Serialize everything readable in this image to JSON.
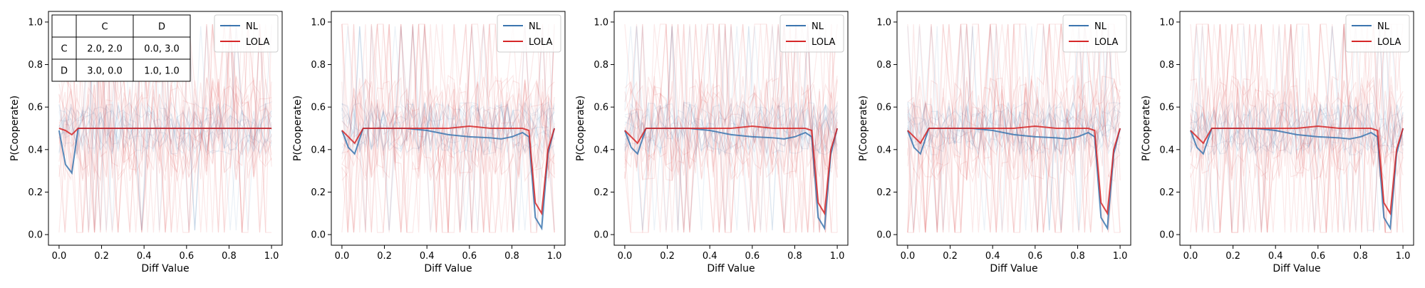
{
  "chart_data": [
    {
      "type": "line",
      "xlabel": "Diff Value",
      "ylabel": "P(Cooperate)",
      "xlim": [
        -0.05,
        1.05
      ],
      "ylim": [
        -0.05,
        1.05
      ],
      "xticks": [
        "0.0",
        "0.2",
        "0.4",
        "0.6",
        "0.8",
        "1.0"
      ],
      "yticks": [
        "0.0",
        "0.2",
        "0.4",
        "0.6",
        "0.8",
        "1.0"
      ],
      "grid": false,
      "legend_position": "top-right",
      "legend": [
        "NL",
        "LOLA"
      ],
      "colors": {
        "NL": "#3b75af",
        "LOLA": "#d62728"
      },
      "x": [
        0.0,
        0.03,
        0.06,
        0.09,
        0.12,
        0.2,
        0.3,
        0.4,
        0.5,
        0.6,
        0.7,
        0.8,
        0.85,
        0.88,
        0.91,
        0.94,
        0.97,
        1.0
      ],
      "series": [
        {
          "name": "NL",
          "values": [
            0.49,
            0.33,
            0.29,
            0.5,
            0.5,
            0.5,
            0.5,
            0.5,
            0.5,
            0.5,
            0.5,
            0.5,
            0.5,
            0.5,
            0.5,
            0.5,
            0.5,
            0.5
          ]
        },
        {
          "name": "LOLA",
          "values": [
            0.5,
            0.49,
            0.47,
            0.5,
            0.5,
            0.5,
            0.5,
            0.5,
            0.5,
            0.5,
            0.5,
            0.5,
            0.5,
            0.5,
            0.5,
            0.5,
            0.5,
            0.5
          ]
        }
      ],
      "payoff_table": {
        "col_headers": [
          "",
          "C",
          "D"
        ],
        "rows": [
          {
            "label": "C",
            "cells": [
              "2.0, 2.0",
              "0.0, 3.0"
            ]
          },
          {
            "label": "D",
            "cells": [
              "3.0, 0.0",
              "1.0, 1.0"
            ]
          }
        ]
      }
    },
    {
      "type": "line",
      "xlabel": "Diff Value",
      "ylabel": "P(Cooperate)",
      "xlim": [
        -0.05,
        1.05
      ],
      "ylim": [
        -0.05,
        1.05
      ],
      "xticks": [
        "0.0",
        "0.2",
        "0.4",
        "0.6",
        "0.8",
        "1.0"
      ],
      "yticks": [
        "0.0",
        "0.2",
        "0.4",
        "0.6",
        "0.8",
        "1.0"
      ],
      "grid": false,
      "legend_position": "top-right",
      "legend": [
        "NL",
        "LOLA"
      ],
      "colors": {
        "NL": "#3b75af",
        "LOLA": "#d62728"
      },
      "x": [
        0.0,
        0.03,
        0.06,
        0.1,
        0.2,
        0.3,
        0.4,
        0.5,
        0.6,
        0.7,
        0.75,
        0.8,
        0.85,
        0.88,
        0.91,
        0.94,
        0.97,
        1.0
      ],
      "series": [
        {
          "name": "NL",
          "values": [
            0.49,
            0.41,
            0.38,
            0.5,
            0.5,
            0.5,
            0.49,
            0.47,
            0.46,
            0.455,
            0.45,
            0.46,
            0.48,
            0.46,
            0.08,
            0.03,
            0.38,
            0.5
          ]
        },
        {
          "name": "LOLA",
          "values": [
            0.49,
            0.46,
            0.43,
            0.5,
            0.5,
            0.5,
            0.5,
            0.5,
            0.51,
            0.5,
            0.5,
            0.5,
            0.5,
            0.49,
            0.15,
            0.1,
            0.4,
            0.5
          ]
        }
      ]
    },
    {
      "type": "line",
      "xlabel": "Diff Value",
      "ylabel": "P(Cooperate)",
      "xlim": [
        -0.05,
        1.05
      ],
      "ylim": [
        -0.05,
        1.05
      ],
      "xticks": [
        "0.0",
        "0.2",
        "0.4",
        "0.6",
        "0.8",
        "1.0"
      ],
      "yticks": [
        "0.0",
        "0.2",
        "0.4",
        "0.6",
        "0.8",
        "1.0"
      ],
      "grid": false,
      "legend_position": "top-right",
      "legend": [
        "NL",
        "LOLA"
      ],
      "colors": {
        "NL": "#3b75af",
        "LOLA": "#d62728"
      },
      "x": [
        0.0,
        0.03,
        0.06,
        0.1,
        0.2,
        0.3,
        0.4,
        0.5,
        0.6,
        0.7,
        0.75,
        0.8,
        0.85,
        0.88,
        0.91,
        0.94,
        0.97,
        1.0
      ],
      "series": [
        {
          "name": "NL",
          "values": [
            0.49,
            0.41,
            0.38,
            0.5,
            0.5,
            0.5,
            0.49,
            0.47,
            0.46,
            0.455,
            0.45,
            0.46,
            0.48,
            0.46,
            0.08,
            0.03,
            0.38,
            0.5
          ]
        },
        {
          "name": "LOLA",
          "values": [
            0.49,
            0.46,
            0.43,
            0.5,
            0.5,
            0.5,
            0.5,
            0.5,
            0.51,
            0.5,
            0.5,
            0.5,
            0.5,
            0.49,
            0.15,
            0.1,
            0.4,
            0.5
          ]
        }
      ]
    },
    {
      "type": "line",
      "xlabel": "Diff Value",
      "ylabel": "P(Cooperate)",
      "xlim": [
        -0.05,
        1.05
      ],
      "ylim": [
        -0.05,
        1.05
      ],
      "xticks": [
        "0.0",
        "0.2",
        "0.4",
        "0.6",
        "0.8",
        "1.0"
      ],
      "yticks": [
        "0.0",
        "0.2",
        "0.4",
        "0.6",
        "0.8",
        "1.0"
      ],
      "grid": false,
      "legend_position": "top-right",
      "legend": [
        "NL",
        "LOLA"
      ],
      "colors": {
        "NL": "#3b75af",
        "LOLA": "#d62728"
      },
      "x": [
        0.0,
        0.03,
        0.06,
        0.1,
        0.2,
        0.3,
        0.4,
        0.5,
        0.6,
        0.7,
        0.75,
        0.8,
        0.85,
        0.88,
        0.91,
        0.94,
        0.97,
        1.0
      ],
      "series": [
        {
          "name": "NL",
          "values": [
            0.49,
            0.41,
            0.38,
            0.5,
            0.5,
            0.5,
            0.49,
            0.47,
            0.46,
            0.455,
            0.45,
            0.46,
            0.48,
            0.46,
            0.08,
            0.03,
            0.38,
            0.5
          ]
        },
        {
          "name": "LOLA",
          "values": [
            0.49,
            0.46,
            0.43,
            0.5,
            0.5,
            0.5,
            0.5,
            0.5,
            0.51,
            0.5,
            0.5,
            0.5,
            0.5,
            0.49,
            0.15,
            0.1,
            0.4,
            0.5
          ]
        }
      ]
    },
    {
      "type": "line",
      "xlabel": "Diff Value",
      "ylabel": "P(Cooperate)",
      "xlim": [
        -0.05,
        1.05
      ],
      "ylim": [
        -0.05,
        1.05
      ],
      "xticks": [
        "0.0",
        "0.2",
        "0.4",
        "0.6",
        "0.8",
        "1.0"
      ],
      "yticks": [
        "0.0",
        "0.2",
        "0.4",
        "0.6",
        "0.8",
        "1.0"
      ],
      "grid": false,
      "legend_position": "top-right",
      "legend": [
        "NL",
        "LOLA"
      ],
      "colors": {
        "NL": "#3b75af",
        "LOLA": "#d62728"
      },
      "x": [
        0.0,
        0.03,
        0.06,
        0.1,
        0.2,
        0.3,
        0.4,
        0.5,
        0.6,
        0.7,
        0.75,
        0.8,
        0.85,
        0.88,
        0.91,
        0.94,
        0.97,
        1.0
      ],
      "series": [
        {
          "name": "NL",
          "values": [
            0.49,
            0.41,
            0.38,
            0.5,
            0.5,
            0.5,
            0.49,
            0.47,
            0.46,
            0.455,
            0.45,
            0.46,
            0.48,
            0.46,
            0.08,
            0.03,
            0.38,
            0.5
          ]
        },
        {
          "name": "LOLA",
          "values": [
            0.49,
            0.46,
            0.43,
            0.5,
            0.5,
            0.5,
            0.5,
            0.5,
            0.51,
            0.5,
            0.5,
            0.5,
            0.5,
            0.49,
            0.15,
            0.1,
            0.4,
            0.5
          ]
        }
      ]
    }
  ]
}
